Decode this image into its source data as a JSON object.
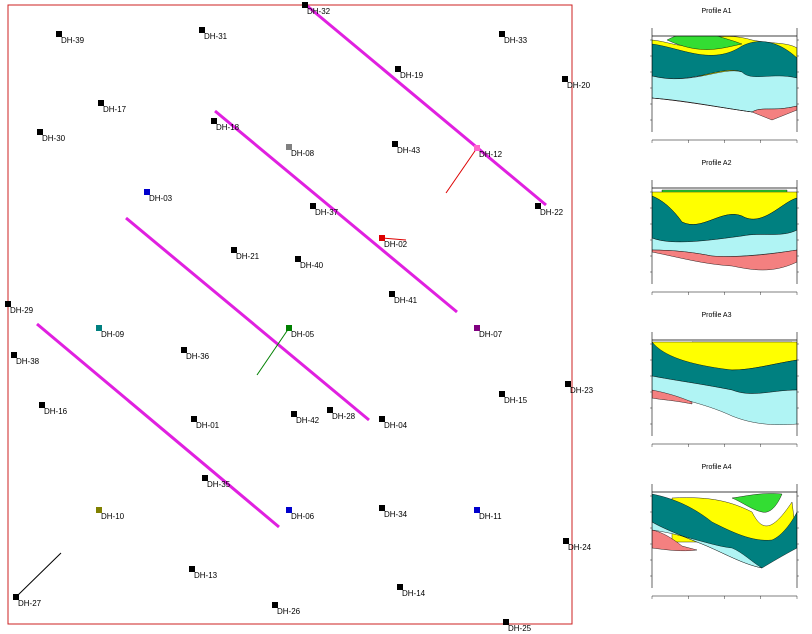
{
  "map": {
    "border_color": "#cc2020",
    "section_color": "#e020e0",
    "holes": [
      {
        "id": "DH-32",
        "color": "#000000"
      },
      {
        "id": "DH-39",
        "color": "#000000"
      },
      {
        "id": "DH-31",
        "color": "#000000"
      },
      {
        "id": "DH-33",
        "color": "#000000"
      },
      {
        "id": "DH-19",
        "color": "#000000"
      },
      {
        "id": "DH-20",
        "color": "#000000"
      },
      {
        "id": "DH-17",
        "color": "#000000"
      },
      {
        "id": "DH-18",
        "color": "#000000"
      },
      {
        "id": "DH-30",
        "color": "#000000"
      },
      {
        "id": "DH-08",
        "color": "#808080"
      },
      {
        "id": "DH-43",
        "color": "#000000"
      },
      {
        "id": "DH-12",
        "color": "#ff66cc"
      },
      {
        "id": "DH-03",
        "color": "#0000cc"
      },
      {
        "id": "DH-37",
        "color": "#000000"
      },
      {
        "id": "DH-22",
        "color": "#000000"
      },
      {
        "id": "DH-02",
        "color": "#dd0000"
      },
      {
        "id": "DH-21",
        "color": "#000000"
      },
      {
        "id": "DH-40",
        "color": "#000000"
      },
      {
        "id": "DH-41",
        "color": "#000000"
      },
      {
        "id": "DH-29",
        "color": "#000000"
      },
      {
        "id": "DH-09",
        "color": "#008080"
      },
      {
        "id": "DH-05",
        "color": "#008000"
      },
      {
        "id": "DH-07",
        "color": "#800080"
      },
      {
        "id": "DH-38",
        "color": "#000000"
      },
      {
        "id": "DH-36",
        "color": "#000000"
      },
      {
        "id": "DH-23",
        "color": "#000000"
      },
      {
        "id": "DH-15",
        "color": "#000000"
      },
      {
        "id": "DH-16",
        "color": "#000000"
      },
      {
        "id": "DH-01",
        "color": "#000000"
      },
      {
        "id": "DH-42",
        "color": "#000000"
      },
      {
        "id": "DH-28",
        "color": "#000000"
      },
      {
        "id": "DH-04",
        "color": "#000000"
      },
      {
        "id": "DH-35",
        "color": "#000000"
      },
      {
        "id": "DH-10",
        "color": "#808000"
      },
      {
        "id": "DH-06",
        "color": "#0000cc"
      },
      {
        "id": "DH-34",
        "color": "#000000"
      },
      {
        "id": "DH-11",
        "color": "#0000cc"
      },
      {
        "id": "DH-24",
        "color": "#000000"
      },
      {
        "id": "DH-13",
        "color": "#000000"
      },
      {
        "id": "DH-14",
        "color": "#000000"
      },
      {
        "id": "DH-27",
        "color": "#000000"
      },
      {
        "id": "DH-26",
        "color": "#000000"
      },
      {
        "id": "DH-25",
        "color": "#000000"
      }
    ]
  },
  "profiles": [
    {
      "title": "Profile A1"
    },
    {
      "title": "Profile A2"
    },
    {
      "title": "Profile A3"
    },
    {
      "title": "Profile A4"
    }
  ],
  "layer_colors": {
    "green": "#33dd33",
    "yellow": "#ffff00",
    "teal": "#008080",
    "cyan": "#b0f4f4",
    "salmon": "#f48080"
  }
}
